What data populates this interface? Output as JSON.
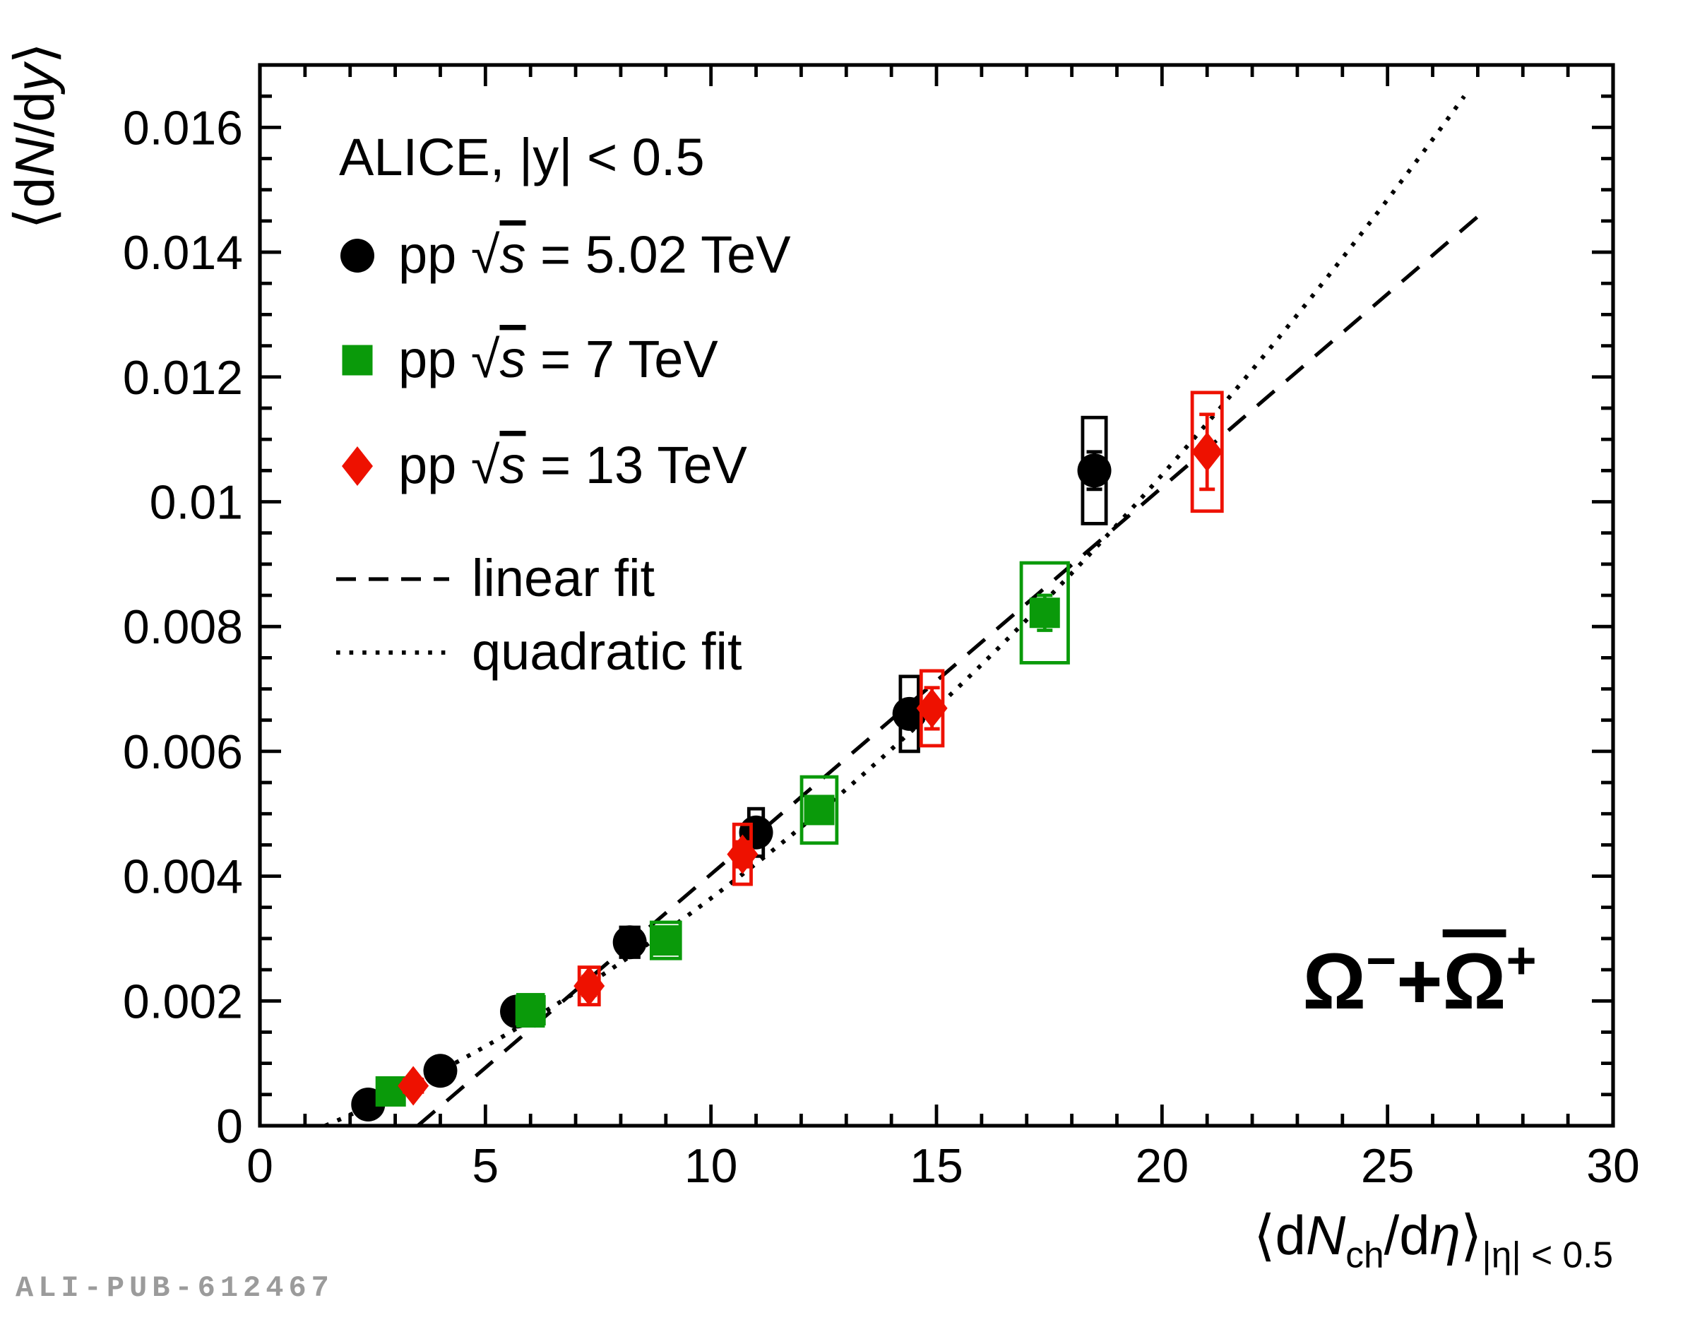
{
  "figure": {
    "watermark": "ALI-PUB-612467",
    "background_color": "#ffffff",
    "frame_color": "#000000"
  },
  "chart_data": {
    "type": "scatter",
    "title": "",
    "xlabel": "<dN_ch/deta> |eta| < 0.5",
    "ylabel": "<dN/dy>",
    "xlim": [
      0,
      30
    ],
    "ylim": [
      0,
      0.017
    ],
    "grid": false,
    "legend_position": "upper-left",
    "x_tick_labels": [
      "0",
      "5",
      "10",
      "15",
      "20",
      "25",
      "30"
    ],
    "y_tick_labels": [
      "0",
      "0.002",
      "0.004",
      "0.006",
      "0.008",
      "0.01",
      "0.012",
      "0.014",
      "0.016"
    ],
    "x_minor_step": 1,
    "y_minor_step": 0.0005,
    "legend": {
      "header": "ALICE, |y| < 0.5",
      "fit_entries": [
        {
          "label": "linear fit",
          "style": "dashed"
        },
        {
          "label": "quadratic fit",
          "style": "dotted"
        }
      ]
    },
    "axis_label_parts": {
      "y": [
        {
          "t": "⟨d"
        },
        {
          "t": "N",
          "i": 1
        },
        {
          "t": "/d"
        },
        {
          "t": "y",
          "i": 1
        },
        {
          "t": "⟩"
        }
      ],
      "x": [
        {
          "t": "⟨d"
        },
        {
          "t": "N",
          "i": 1
        },
        {
          "t": "ch",
          "sub": 1
        },
        {
          "t": "/d"
        },
        {
          "t": "η",
          "i": 1
        },
        {
          "t": "⟩"
        },
        {
          "t": "|η| < 0.5",
          "sub": 1
        }
      ]
    },
    "particle_label_parts": [
      {
        "t": "Ω"
      },
      {
        "t": "−",
        "sup": 1
      },
      {
        "t": "+"
      },
      {
        "t": "Ω",
        "bar": 1
      },
      {
        "t": "+",
        "sup": 1
      }
    ],
    "series": [
      {
        "name": "pp sqrt(s) = 5.02 TeV",
        "energy": "5.02 TeV",
        "marker": "circle",
        "color": "#000000",
        "label_parts": [
          {
            "t": "pp  "
          },
          {
            "t": "√"
          },
          {
            "t": "s",
            "i": 1,
            "bar": 1
          },
          {
            "t": " = 5.02 TeV"
          }
        ],
        "points": [
          {
            "x": 2.4,
            "y": 0.00034,
            "stat": 2e-05,
            "syst": 6e-05,
            "bw": 0.22
          },
          {
            "x": 4.0,
            "y": 0.00088,
            "stat": 3e-05,
            "syst": 0.0001,
            "bw": 0.22
          },
          {
            "x": 5.7,
            "y": 0.00183,
            "stat": 4e-05,
            "syst": 0.00015,
            "bw": 0.22
          },
          {
            "x": 8.2,
            "y": 0.00294,
            "stat": 6e-05,
            "syst": 0.00024,
            "bw": 0.2
          },
          {
            "x": 11.0,
            "y": 0.0047,
            "stat": 0.0001,
            "syst": 0.00038,
            "bw": 0.16
          },
          {
            "x": 14.4,
            "y": 0.0066,
            "stat": 0.00015,
            "syst": 0.0006,
            "bw": 0.2
          },
          {
            "x": 18.5,
            "y": 0.0105,
            "stat": 0.0003,
            "syst": 0.00085,
            "bw": 0.26
          }
        ]
      },
      {
        "name": "pp sqrt(s) = 7 TeV",
        "energy": "7 TeV",
        "marker": "square",
        "color": "#0a9a0a",
        "label_parts": [
          {
            "t": "pp  "
          },
          {
            "t": "√"
          },
          {
            "t": "s",
            "i": 1,
            "bar": 1
          },
          {
            "t": " = 7 TeV"
          }
        ],
        "points": [
          {
            "x": 2.9,
            "y": 0.00055,
            "stat": 3e-05,
            "syst": 0.0001,
            "bw": 0.28
          },
          {
            "x": 6.0,
            "y": 0.00185,
            "stat": 6e-05,
            "syst": 0.00025,
            "bw": 0.28
          },
          {
            "x": 9.0,
            "y": 0.00297,
            "stat": 8e-05,
            "syst": 0.00029,
            "bw": 0.32
          },
          {
            "x": 12.4,
            "y": 0.00506,
            "stat": 0.00012,
            "syst": 0.00053,
            "bw": 0.39
          },
          {
            "x": 17.4,
            "y": 0.00822,
            "stat": 0.00028,
            "syst": 0.0008,
            "bw": 0.52
          }
        ]
      },
      {
        "name": "pp sqrt(s) = 13 TeV",
        "energy": "13 TeV",
        "marker": "diamond",
        "color": "#ee1100",
        "label_parts": [
          {
            "t": "pp  "
          },
          {
            "t": "√"
          },
          {
            "t": "s",
            "i": 1,
            "bar": 1
          },
          {
            "t": " = 13 TeV"
          }
        ],
        "points": [
          {
            "x": 3.4,
            "y": 0.00064,
            "stat": 4e-05,
            "syst": 0.0001,
            "bw": 0.2
          },
          {
            "x": 7.3,
            "y": 0.00224,
            "stat": 0.00015,
            "syst": 0.0003,
            "bw": 0.22
          },
          {
            "x": 10.7,
            "y": 0.00435,
            "stat": 0.0002,
            "syst": 0.00048,
            "bw": 0.19
          },
          {
            "x": 14.9,
            "y": 0.00669,
            "stat": 0.00033,
            "syst": 0.0006,
            "bw": 0.24
          },
          {
            "x": 21.0,
            "y": 0.0108,
            "stat": 0.0006,
            "syst": 0.00095,
            "bw": 0.33
          }
        ]
      }
    ],
    "fits": [
      {
        "label": "linear fit",
        "type": "linear",
        "style": "dashed",
        "x_start": 3.5,
        "x_end": 27.2,
        "slope": 0.00062,
        "x_zero": 3.5
      },
      {
        "label": "quadratic fit",
        "type": "quadratic",
        "style": "dotted",
        "x_start": 1.45,
        "x_end": 26.75,
        "a": 0.00031,
        "b": 1.36e-05,
        "x_zero": 1.45
      }
    ]
  }
}
